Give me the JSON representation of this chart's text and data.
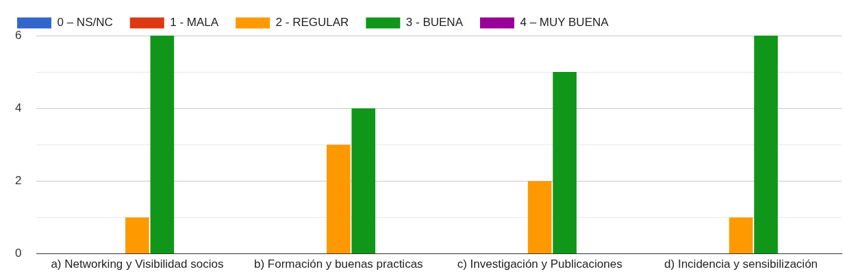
{
  "chart_data": {
    "type": "bar",
    "categories": [
      "a) Networking y Visibilidad socios",
      "b) Formación y buenas practicas",
      "c) Investigación y Publicaciones",
      "d) Incidencia y sensibilización"
    ],
    "series": [
      {
        "name": "0 – NS/NC",
        "color": "#3366cc",
        "values": [
          0,
          0,
          0,
          0
        ]
      },
      {
        "name": "1 - MALA",
        "color": "#dc3912",
        "values": [
          0,
          0,
          0,
          0
        ]
      },
      {
        "name": "2 - REGULAR",
        "color": "#ff9900",
        "values": [
          1,
          3,
          2,
          1
        ]
      },
      {
        "name": "3 - BUENA",
        "color": "#109618",
        "values": [
          6,
          4,
          5,
          6
        ]
      },
      {
        "name": "4 – MUY BUENA",
        "color": "#990099",
        "values": [
          0,
          0,
          0,
          0
        ]
      }
    ],
    "ylim": [
      0,
      6
    ],
    "yticks": [
      0,
      {
        "value": 1,
        "label": null
      },
      2,
      {
        "value": 3,
        "label": null
      },
      4,
      {
        "value": 5,
        "label": null
      },
      6
    ],
    "grid": "y",
    "legend": "top left"
  }
}
